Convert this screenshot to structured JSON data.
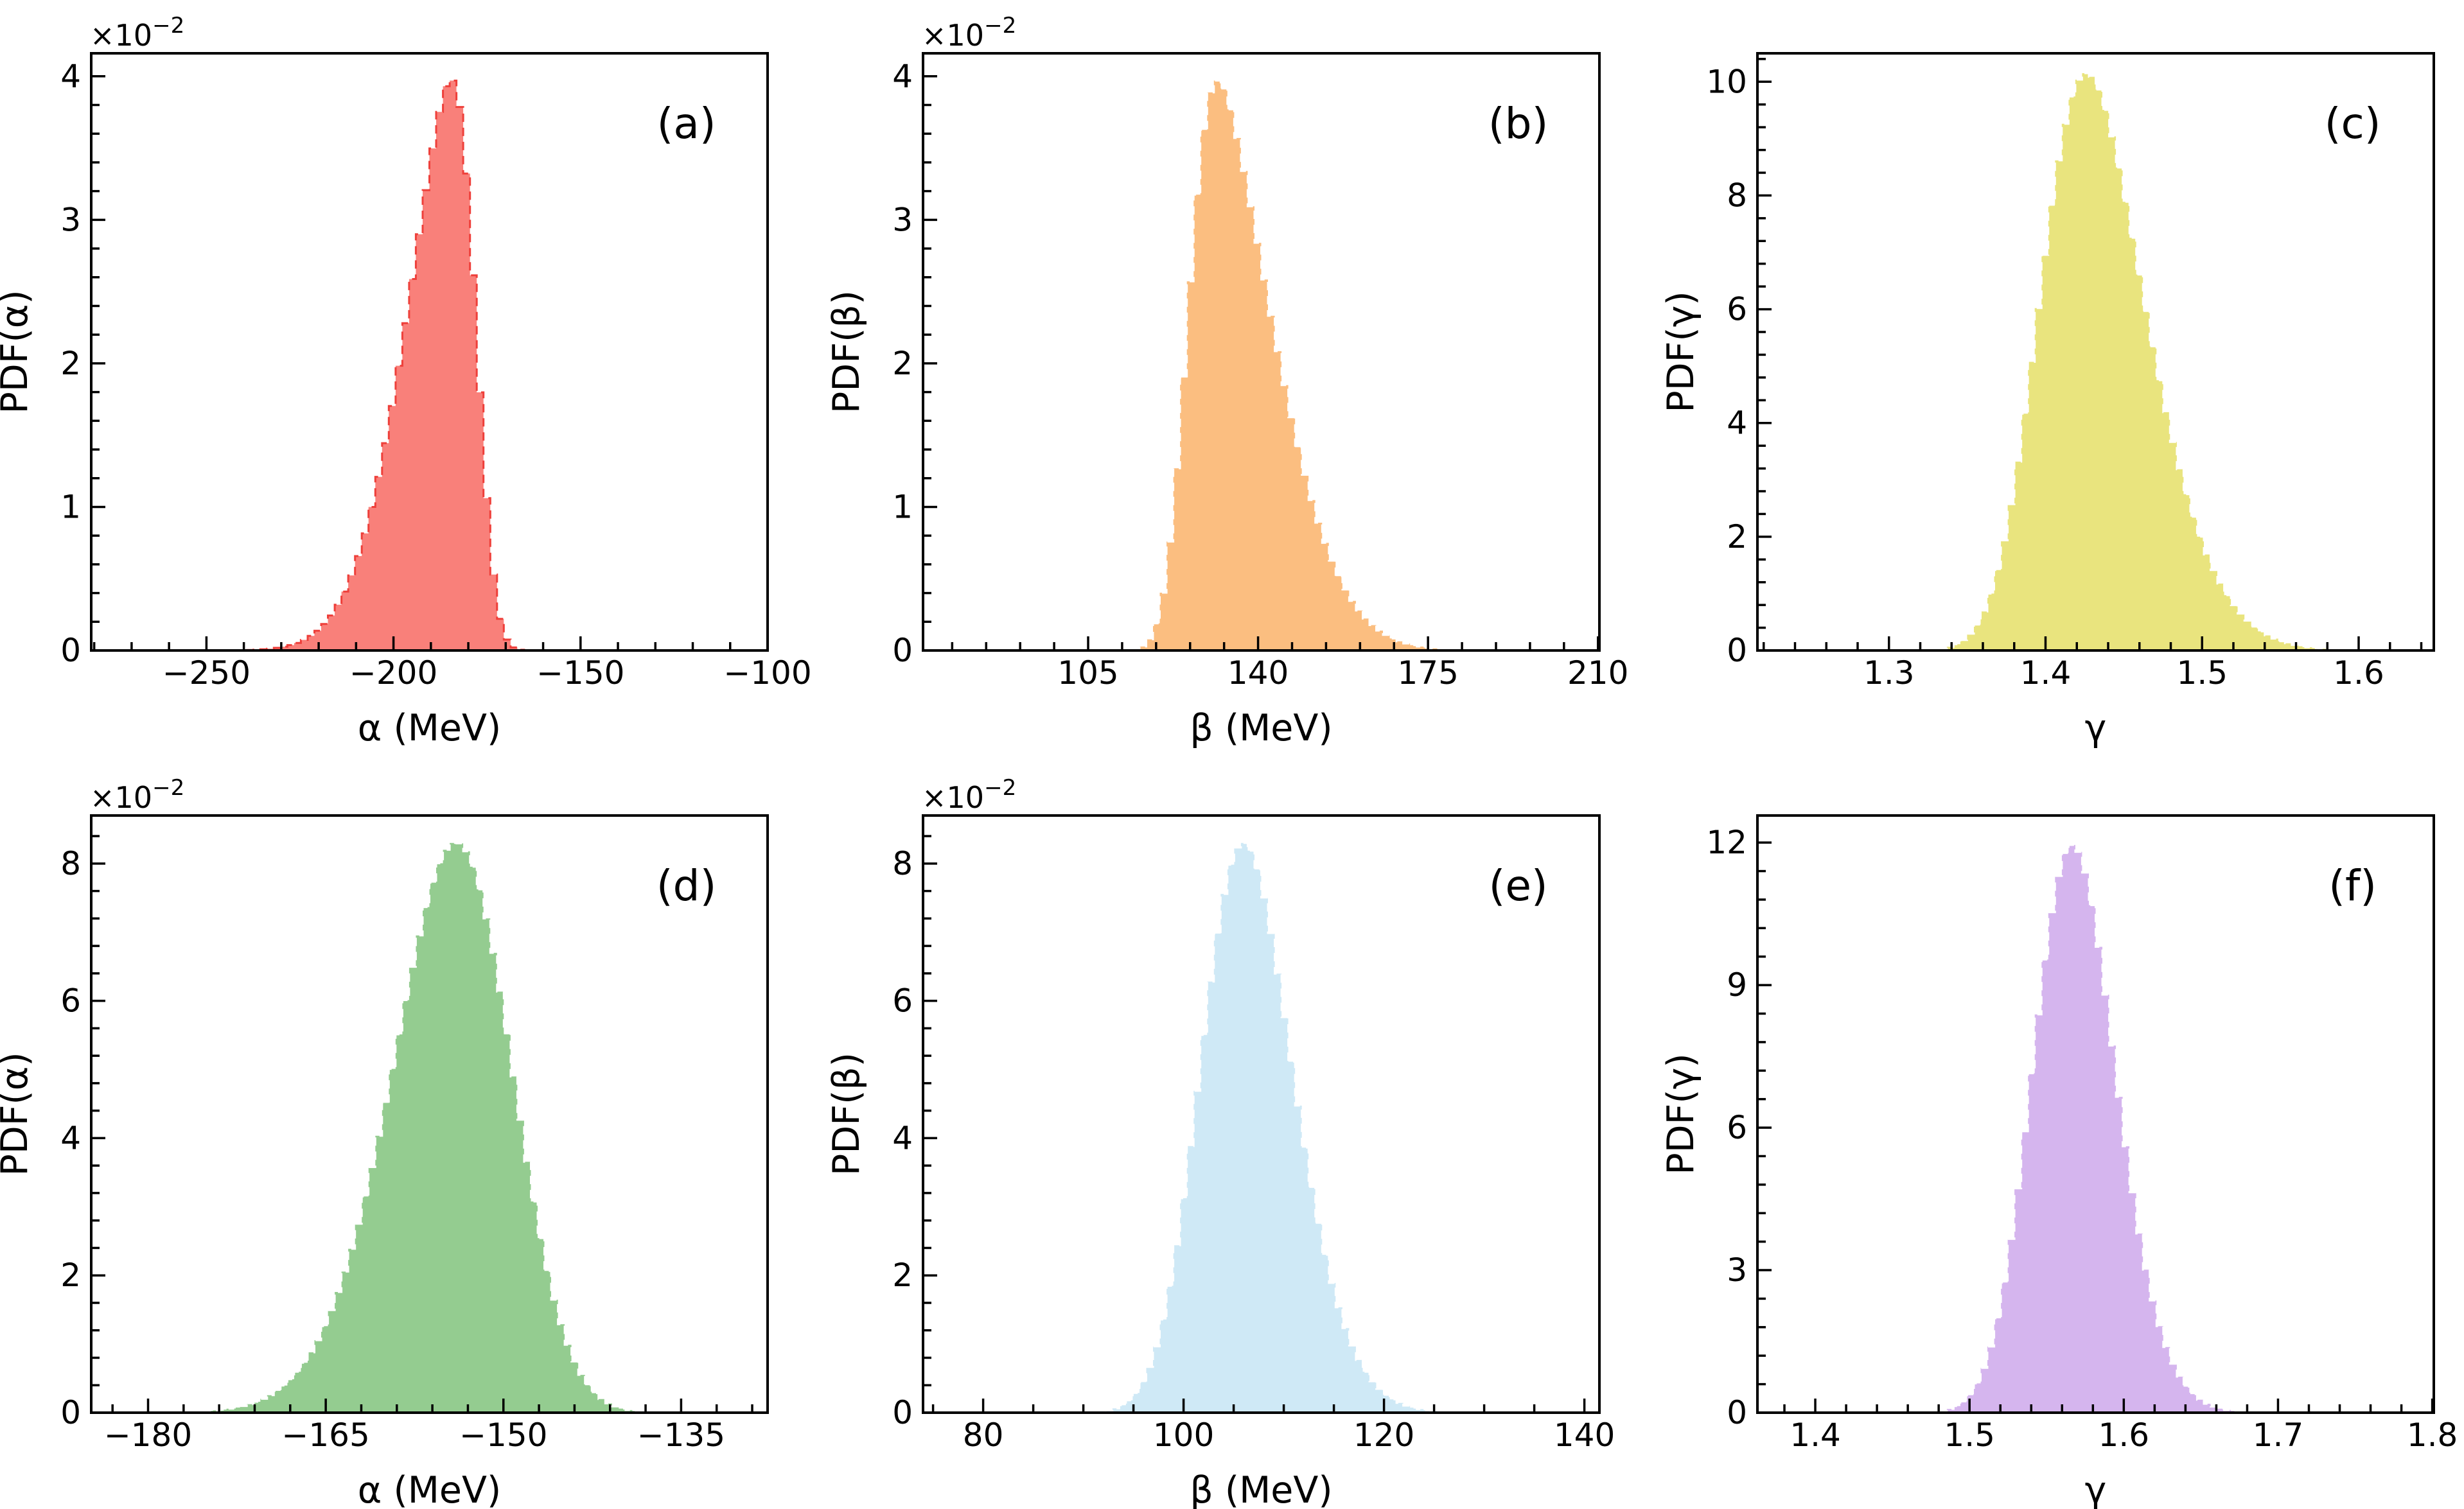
{
  "figure": {
    "background": "#ffffff",
    "rows": 2,
    "cols": 3,
    "description_visible_text_only": true
  },
  "chart_data": [
    {
      "id": "a",
      "letter": "(a)",
      "type": "histogram-pdf",
      "xlabel": "α (MeV)",
      "ylabel": "PDF(α)",
      "offset": {
        "base": "×10",
        "exponent": "−2"
      },
      "xlim": [
        -280.8,
        -100
      ],
      "ylim": [
        0,
        4.16
      ],
      "xticks": [
        -250,
        -200,
        -150,
        -100
      ],
      "xtick_labels": [
        "−250",
        "−200",
        "−150",
        "−100"
      ],
      "yticks": [
        0,
        1,
        2,
        3,
        4
      ],
      "ytick_labels": [
        "0",
        "1",
        "2",
        "3",
        "4"
      ],
      "x_minor_step": 10,
      "y_minor_step": 0.2,
      "bins": 100,
      "fill_color": "#f9807a",
      "edge_color": "#ee3f3a",
      "edge_style": "dashed",
      "dist": {
        "shape": "skew-normal",
        "xi": -177.9,
        "omega": 16,
        "alpha": -4
      },
      "peak": {
        "x": -184.6,
        "y": 3.97
      }
    },
    {
      "id": "b",
      "letter": "(b)",
      "type": "histogram-pdf",
      "xlabel": "β (MeV)",
      "ylabel": "PDF(β)",
      "offset": {
        "base": "×10",
        "exponent": "−2"
      },
      "xlim": [
        71,
        210.3
      ],
      "ylim": [
        0,
        4.16
      ],
      "xticks": [
        105,
        140,
        175,
        210
      ],
      "xtick_labels": [
        "105",
        "140",
        "175",
        "210"
      ],
      "yticks": [
        0,
        1,
        2,
        3,
        4
      ],
      "ytick_labels": [
        "0",
        "1",
        "2",
        "3",
        "4"
      ],
      "x_minor_step": 7,
      "y_minor_step": 0.2,
      "bins": 100,
      "fill_color": "#fbbe80",
      "edge_color": "#ffffff",
      "edge_style": "dashed",
      "dist": {
        "shape": "skew-normal",
        "xi": 125.4,
        "omega": 15,
        "alpha": 4
      },
      "peak": {
        "x": 131.7,
        "y": 3.97
      }
    },
    {
      "id": "c",
      "letter": "(c)",
      "type": "histogram-pdf",
      "xlabel": "γ",
      "ylabel": "PDF(γ)",
      "offset": null,
      "xlim": [
        1.216,
        1.648
      ],
      "ylim": [
        0,
        10.5
      ],
      "xticks": [
        1.3,
        1.4,
        1.5,
        1.6
      ],
      "xtick_labels": [
        "1.3",
        "1.4",
        "1.5",
        "1.6"
      ],
      "yticks": [
        0,
        2,
        4,
        6,
        8,
        10
      ],
      "ytick_labels": [
        "0",
        "2",
        "4",
        "6",
        "8",
        "10"
      ],
      "x_minor_step": 0.02,
      "y_minor_step": 0.4,
      "bins": 100,
      "fill_color": "#e9e47e",
      "edge_color": "#ffffff",
      "edge_style": "dashed",
      "dist": {
        "shape": "skew-normal",
        "xi": 1.399,
        "omega": 0.051,
        "alpha": 2
      },
      "peak": {
        "x": 1.426,
        "y": 10.15
      }
    },
    {
      "id": "d",
      "letter": "(d)",
      "type": "histogram-pdf",
      "xlabel": "α (MeV)",
      "ylabel": "PDF(α)",
      "offset": {
        "base": "×10",
        "exponent": "−2"
      },
      "xlim": [
        -184.8,
        -127.7
      ],
      "ylim": [
        0,
        8.7
      ],
      "xticks": [
        -180,
        -165,
        -150,
        -135
      ],
      "xtick_labels": [
        "−180",
        "−165",
        "−150",
        "−135"
      ],
      "yticks": [
        0,
        2,
        4,
        6,
        8
      ],
      "ytick_labels": [
        "0",
        "2",
        "4",
        "6",
        "8"
      ],
      "x_minor_step": 3,
      "y_minor_step": 0.4,
      "bins": 100,
      "fill_color": "#94cc90",
      "edge_color": "#ffffff",
      "edge_style": "dashed",
      "dist": {
        "shape": "skew-normal",
        "xi": -150.2,
        "omega": 7.0,
        "alpha": -1.5
      },
      "peak": {
        "x": -154.0,
        "y": 8.3
      }
    },
    {
      "id": "e",
      "letter": "(e)",
      "type": "histogram-pdf",
      "xlabel": "β (MeV)",
      "ylabel": "PDF(β)",
      "offset": {
        "base": "×10",
        "exponent": "−2"
      },
      "xlim": [
        74,
        141.5
      ],
      "ylim": [
        0,
        8.7
      ],
      "xticks": [
        80,
        100,
        120,
        140
      ],
      "xtick_labels": [
        "80",
        "100",
        "120",
        "140"
      ],
      "yticks": [
        0,
        2,
        4,
        6,
        8
      ],
      "ytick_labels": [
        "0",
        "2",
        "4",
        "6",
        "8"
      ],
      "x_minor_step": 5,
      "y_minor_step": 0.4,
      "bins": 100,
      "fill_color": "#cfe9f6",
      "edge_color": "#ffffff",
      "edge_style": "dashed",
      "dist": {
        "shape": "skew-normal",
        "xi": 102.5,
        "omega": 6.4,
        "alpha": 1.5
      },
      "peak": {
        "x": 106.0,
        "y": 8.3
      }
    },
    {
      "id": "f",
      "letter": "(f)",
      "type": "histogram-pdf",
      "xlabel": "γ",
      "ylabel": "PDF(γ)",
      "offset": null,
      "xlim": [
        1.3625,
        1.801
      ],
      "ylim": [
        0,
        12.57
      ],
      "xticks": [
        1.4,
        1.5,
        1.6,
        1.7,
        1.8
      ],
      "xtick_labels": [
        "1.4",
        "1.5",
        "1.6",
        "1.7",
        "1.8"
      ],
      "yticks": [
        0,
        3,
        6,
        9,
        12
      ],
      "ytick_labels": [
        "0",
        "3",
        "6",
        "9",
        "12"
      ],
      "x_minor_step": 0.02,
      "y_minor_step": 0.6,
      "bins": 100,
      "fill_color": "#d5b5ee",
      "edge_color": "#ffffff",
      "edge_style": "dashed",
      "dist": {
        "shape": "skew-normal",
        "xi": 1.548,
        "omega": 0.035,
        "alpha": 1.2
      },
      "peak": {
        "x": 1.567,
        "y": 11.95
      }
    }
  ]
}
